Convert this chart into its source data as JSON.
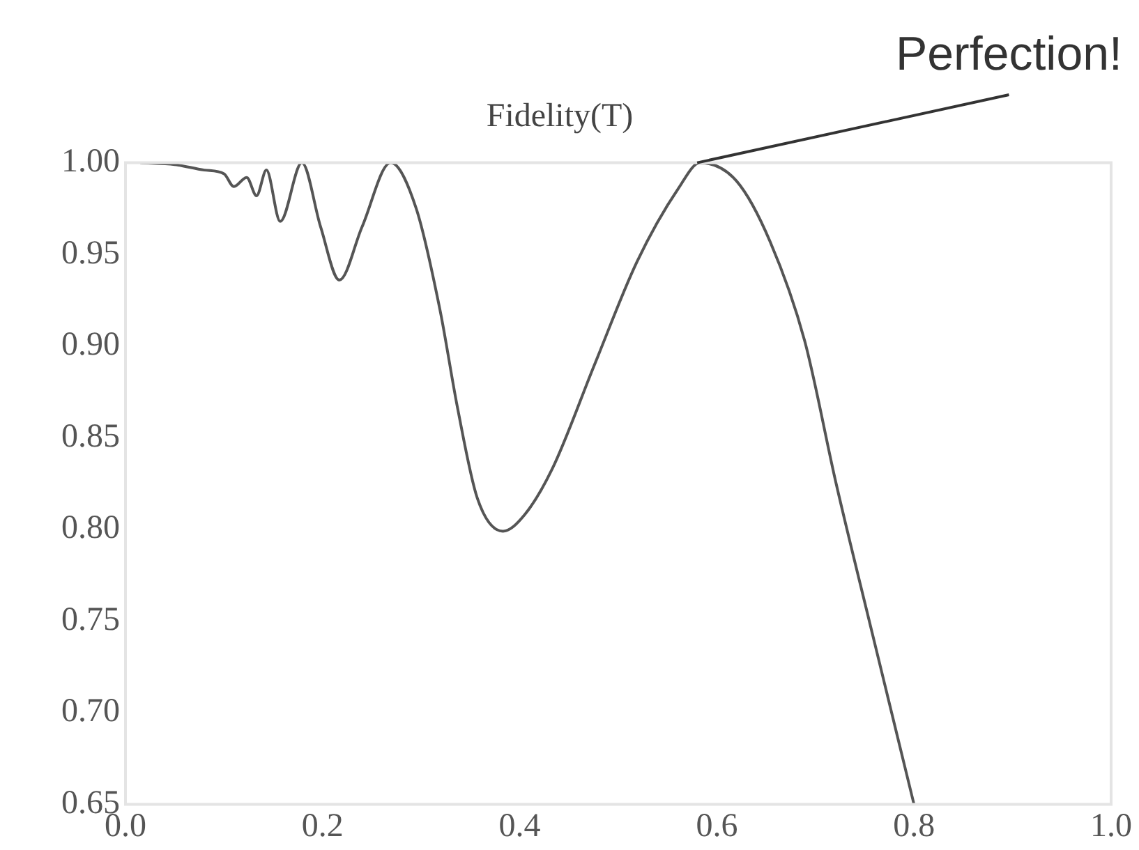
{
  "chart_data": {
    "type": "line",
    "title": "Fidelity(T)",
    "x": [
      0.015,
      0.05,
      0.08,
      0.1,
      0.11,
      0.123,
      0.133,
      0.143,
      0.157,
      0.179,
      0.198,
      0.217,
      0.24,
      0.269,
      0.295,
      0.319,
      0.337,
      0.357,
      0.383,
      0.405,
      0.433,
      0.476,
      0.519,
      0.561,
      0.583,
      0.62,
      0.654,
      0.689,
      0.721,
      0.756,
      0.8
    ],
    "series": [
      {
        "color": "#555555",
        "values": [
          1.0,
          0.999,
          0.996,
          0.994,
          0.987,
          0.992,
          0.982,
          0.996,
          0.968,
          1.0,
          0.965,
          0.936,
          0.965,
          1.0,
          0.975,
          0.92,
          0.866,
          0.817,
          0.799,
          0.808,
          0.833,
          0.89,
          0.946,
          0.986,
          1.0,
          0.99,
          0.957,
          0.903,
          0.825,
          0.747,
          0.65
        ]
      }
    ],
    "xlim": [
      0,
      1
    ],
    "xticks": [
      {
        "value": 0,
        "label": "0.0"
      },
      0.2,
      0.4,
      0.6,
      0.8,
      {
        "value": 1,
        "label": "1.0"
      }
    ],
    "ylim": [
      0.65,
      1
    ],
    "yticks": [
      0.65,
      {
        "value": 0.7,
        "label": "0.70"
      },
      0.75,
      {
        "value": 0.8,
        "label": "0.80"
      },
      0.85,
      {
        "value": 0.9,
        "label": "0.90"
      },
      0.95,
      {
        "value": 1,
        "label": "1.00"
      }
    ],
    "grid": false,
    "legend": false,
    "marker": "none",
    "line_style": "solid",
    "annotations": [
      {
        "text": "Perfection!",
        "x": 0.58,
        "y": 1.0
      }
    ]
  }
}
